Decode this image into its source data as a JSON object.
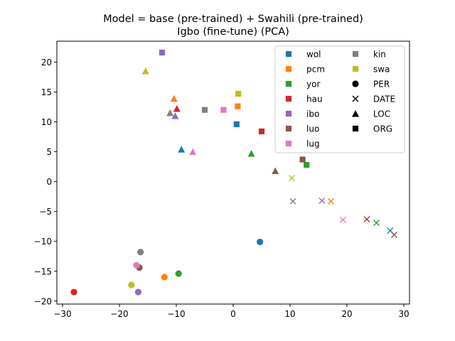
{
  "chart_data": {
    "type": "scatter",
    "title": [
      "Model = base (pre-trained) + Swahili (pre-trained)",
      "Igbo (fine-tune) (PCA)"
    ],
    "xlabel": "",
    "ylabel": "",
    "xlim": [
      -31,
      31
    ],
    "ylim": [
      -20.5,
      23.5
    ],
    "xticks": [
      -30,
      -20,
      -10,
      0,
      10,
      20,
      30
    ],
    "yticks": [
      -20,
      -15,
      -10,
      -5,
      0,
      5,
      10,
      15,
      20
    ],
    "grid": false,
    "legend_position": "top-right",
    "languages": [
      {
        "name": "wol",
        "color": "#1f77b4"
      },
      {
        "name": "pcm",
        "color": "#ff7f0e"
      },
      {
        "name": "yor",
        "color": "#2ca02c"
      },
      {
        "name": "hau",
        "color": "#d62728"
      },
      {
        "name": "ibo",
        "color": "#9467bd"
      },
      {
        "name": "luo",
        "color": "#8c564b"
      },
      {
        "name": "lug",
        "color": "#e377c2"
      },
      {
        "name": "kin",
        "color": "#7f7f7f"
      },
      {
        "name": "swa",
        "color": "#bcbd22"
      }
    ],
    "entity_types": [
      {
        "name": "PER",
        "marker": "circle"
      },
      {
        "name": "DATE",
        "marker": "x"
      },
      {
        "name": "LOC",
        "marker": "triangle"
      },
      {
        "name": "ORG",
        "marker": "square"
      }
    ],
    "points": [
      {
        "lang": "wol",
        "type": "PER",
        "x": 4.7,
        "y": -10.1
      },
      {
        "lang": "pcm",
        "type": "PER",
        "x": -12.1,
        "y": -16.0
      },
      {
        "lang": "yor",
        "type": "PER",
        "x": -9.6,
        "y": -15.4
      },
      {
        "lang": "hau",
        "type": "PER",
        "x": -28.0,
        "y": -18.5
      },
      {
        "lang": "ibo",
        "type": "PER",
        "x": -16.7,
        "y": -18.5
      },
      {
        "lang": "luo",
        "type": "PER",
        "x": -16.5,
        "y": -14.4
      },
      {
        "lang": "lug",
        "type": "PER",
        "x": -17.0,
        "y": -14.0
      },
      {
        "lang": "kin",
        "type": "PER",
        "x": -16.3,
        "y": -11.8
      },
      {
        "lang": "swa",
        "type": "PER",
        "x": -17.9,
        "y": -17.3
      },
      {
        "lang": "wol",
        "type": "DATE",
        "x": 27.6,
        "y": -8.2
      },
      {
        "lang": "pcm",
        "type": "DATE",
        "x": 17.2,
        "y": -3.3
      },
      {
        "lang": "yor",
        "type": "DATE",
        "x": 25.2,
        "y": -6.9
      },
      {
        "lang": "hau",
        "type": "DATE",
        "x": 23.5,
        "y": -6.3
      },
      {
        "lang": "ibo",
        "type": "DATE",
        "x": 15.6,
        "y": -3.2
      },
      {
        "lang": "luo",
        "type": "DATE",
        "x": 28.3,
        "y": -8.9
      },
      {
        "lang": "lug",
        "type": "DATE",
        "x": 19.3,
        "y": -6.4
      },
      {
        "lang": "kin",
        "type": "DATE",
        "x": 10.5,
        "y": -3.3
      },
      {
        "lang": "swa",
        "type": "DATE",
        "x": 10.3,
        "y": 0.6
      },
      {
        "lang": "wol",
        "type": "LOC",
        "x": -9.1,
        "y": 5.4
      },
      {
        "lang": "pcm",
        "type": "LOC",
        "x": -10.4,
        "y": 13.9
      },
      {
        "lang": "yor",
        "type": "LOC",
        "x": 3.2,
        "y": 4.7
      },
      {
        "lang": "hau",
        "type": "LOC",
        "x": -9.9,
        "y": 12.2
      },
      {
        "lang": "ibo",
        "type": "LOC",
        "x": -10.2,
        "y": 11.0
      },
      {
        "lang": "luo",
        "type": "LOC",
        "x": 7.4,
        "y": 1.8
      },
      {
        "lang": "lug",
        "type": "LOC",
        "x": -7.1,
        "y": 5.0
      },
      {
        "lang": "kin",
        "type": "LOC",
        "x": -11.1,
        "y": 11.5
      },
      {
        "lang": "swa",
        "type": "LOC",
        "x": -15.4,
        "y": 18.5
      },
      {
        "lang": "wol",
        "type": "ORG",
        "x": 0.6,
        "y": 9.6
      },
      {
        "lang": "pcm",
        "type": "ORG",
        "x": 0.8,
        "y": 12.6
      },
      {
        "lang": "yor",
        "type": "ORG",
        "x": 12.9,
        "y": 2.8
      },
      {
        "lang": "hau",
        "type": "ORG",
        "x": 5.0,
        "y": 8.4
      },
      {
        "lang": "ibo",
        "type": "ORG",
        "x": -12.5,
        "y": 21.6
      },
      {
        "lang": "luo",
        "type": "ORG",
        "x": 12.2,
        "y": 3.7
      },
      {
        "lang": "lug",
        "type": "ORG",
        "x": -1.7,
        "y": 12.0
      },
      {
        "lang": "kin",
        "type": "ORG",
        "x": -5.0,
        "y": 12.0
      },
      {
        "lang": "swa",
        "type": "ORG",
        "x": 0.9,
        "y": 14.7
      }
    ]
  }
}
